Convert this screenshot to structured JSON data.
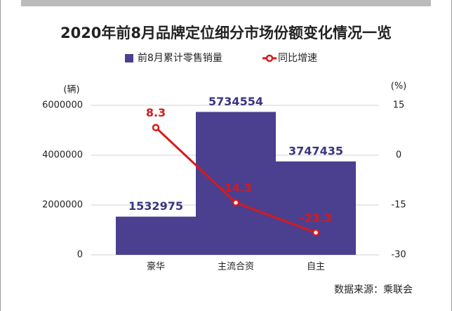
{
  "chart_data": {
    "type": "bar",
    "title": "2020年前8月品牌定位细分市场份额变化情况一览",
    "y_label": "(辆)",
    "y2_label": "(%)",
    "source": "数据来源：乘联会",
    "categories": [
      "豪华",
      "主流合资",
      "自主"
    ],
    "series": [
      {
        "name": "前8月累计零售销量",
        "type": "bar",
        "color": "#4b3f8f",
        "label_color": "#3a3480",
        "values": [
          1532975,
          5734554,
          3747435
        ]
      },
      {
        "name": "同比增速",
        "type": "line",
        "axis": "y2",
        "color": "#d7191c",
        "values": [
          8.3,
          -14.3,
          -23.3
        ]
      }
    ],
    "ylim": [
      0,
      6000000
    ],
    "yticks": [
      0,
      2000000,
      4000000,
      6000000
    ],
    "y2lim": [
      -30,
      15
    ],
    "y2ticks": [
      -30,
      -15,
      0,
      15
    ],
    "grid": true
  }
}
